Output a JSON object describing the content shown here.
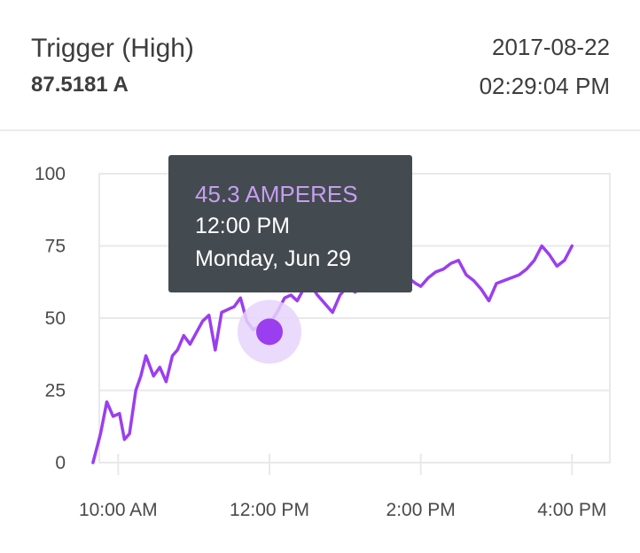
{
  "header": {
    "sensor_name": "Trigger (High)",
    "current_value": "87.5181 A",
    "date": "2017-08-22",
    "time": "02:29:04 PM"
  },
  "tooltip": {
    "value": "45.3 AMPERES",
    "time": "12:00 PM",
    "date": "Monday, Jun 29"
  },
  "colors": {
    "line": "#9b3ef0",
    "marker": "#9b3ef0",
    "halo": "#e6d4fa",
    "tooltip_bg": "#434a50",
    "tooltip_value": "#c79ef0",
    "grid": "#e9e9e9"
  },
  "chart_data": {
    "type": "line",
    "title": "",
    "xlabel": "",
    "ylabel": "",
    "ylim": [
      0,
      100
    ],
    "xlim": [
      "09:45",
      "16:30"
    ],
    "y_ticks": [
      "0",
      "25",
      "50",
      "75",
      "100"
    ],
    "x_ticks": [
      {
        "time": "10:00",
        "label": "10:00 AM"
      },
      {
        "time": "12:00",
        "label": "12:00 PM"
      },
      {
        "time": "14:00",
        "label": "2:00 PM"
      },
      {
        "time": "16:00",
        "label": "4:00 PM"
      }
    ],
    "highlight": {
      "x": "12:00",
      "y": 45.3
    },
    "grid": true,
    "series": [
      {
        "x": [
          "09:40",
          "09:46",
          "09:51",
          "09:56",
          "10:01",
          "10:05",
          "10:09",
          "10:14",
          "10:18",
          "10:22",
          "10:28",
          "10:33",
          "10:38",
          "10:43",
          "10:47",
          "10:52",
          "10:57",
          "11:02",
          "11:07",
          "11:12",
          "11:17",
          "11:22",
          "11:27",
          "11:32",
          "11:37",
          "11:42",
          "11:47",
          "11:52",
          "11:57",
          "12:00",
          "12:06",
          "12:12",
          "12:17",
          "12:22",
          "12:27",
          "12:32",
          "12:38",
          "12:44",
          "12:50",
          "12:56",
          "13:02",
          "13:08",
          "13:14",
          "13:20",
          "13:26",
          "13:32",
          "13:38",
          "13:44",
          "13:50",
          "13:56",
          "14:00",
          "14:06",
          "14:12",
          "14:18",
          "14:24",
          "14:30",
          "14:36",
          "14:42",
          "14:48",
          "14:54",
          "15:00",
          "15:06",
          "15:12",
          "15:18",
          "15:24",
          "15:30",
          "15:36",
          "15:42",
          "15:48",
          "15:54",
          "16:00"
        ],
        "y": [
          0,
          10,
          21,
          16,
          17,
          8,
          10,
          25,
          30,
          37,
          30,
          33,
          28,
          37,
          39,
          44,
          41,
          45,
          49,
          51,
          39,
          52,
          53,
          54,
          57,
          49,
          46,
          47,
          45.3,
          48,
          52,
          57,
          58,
          56,
          60,
          62,
          58,
          55,
          52,
          58,
          61,
          59,
          62,
          61,
          60,
          64,
          65,
          68,
          64,
          62,
          61,
          64,
          66,
          67,
          69,
          70,
          65,
          63,
          60,
          56,
          62,
          63,
          64,
          65,
          67,
          70,
          75,
          72,
          68,
          70,
          75
        ]
      }
    ]
  }
}
